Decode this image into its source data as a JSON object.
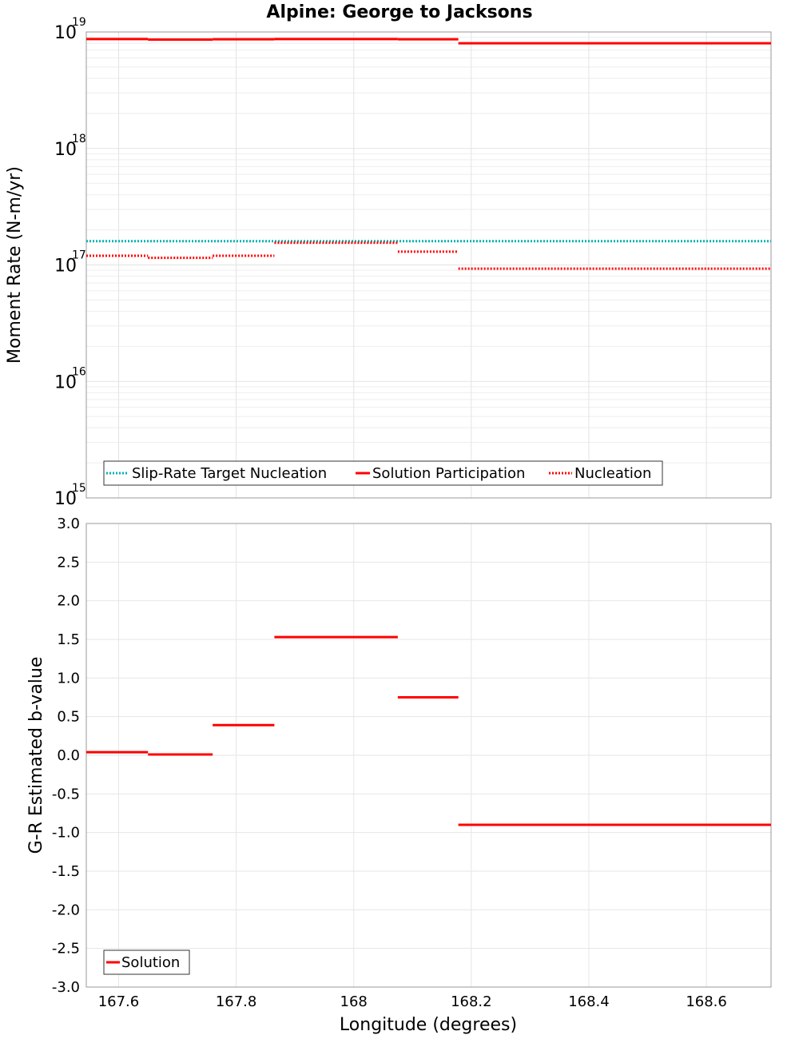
{
  "chart_data": [
    {
      "type": "line",
      "title": "Alpine: George to Jacksons",
      "xlabel": "",
      "ylabel": "Moment Rate (N-m/yr)",
      "yscale": "log",
      "xlim": [
        167.545,
        168.71
      ],
      "ylim": [
        1000000000000000.0,
        1e+19
      ],
      "y_ticks": [
        {
          "base": "10",
          "exp": "15",
          "value": 1000000000000000.0
        },
        {
          "base": "10",
          "exp": "16",
          "value": 1e+16
        },
        {
          "base": "10",
          "exp": "17",
          "value": 1e+17
        },
        {
          "base": "10",
          "exp": "18",
          "value": 1e+18
        },
        {
          "base": "10",
          "exp": "19",
          "value": 1e+19
        }
      ],
      "grid": true,
      "legend_position": "bottom-left",
      "series": [
        {
          "name": "Slip-Rate Target Nucleation",
          "color": "#00b3b3",
          "style": "dotted",
          "segments": [
            {
              "x0": 167.545,
              "x1": 168.71,
              "y": 1.6e+17
            }
          ]
        },
        {
          "name": "Solution Participation",
          "color": "#ff0000",
          "style": "solid",
          "segments": [
            {
              "x0": 167.545,
              "x1": 167.65,
              "y": 8.7e+18
            },
            {
              "x0": 167.65,
              "x1": 167.76,
              "y": 8.6e+18
            },
            {
              "x0": 167.76,
              "x1": 167.865,
              "y": 8.65e+18
            },
            {
              "x0": 167.865,
              "x1": 168.075,
              "y": 8.7e+18
            },
            {
              "x0": 168.075,
              "x1": 168.178,
              "y": 8.65e+18
            },
            {
              "x0": 168.178,
              "x1": 168.71,
              "y": 8e+18
            }
          ]
        },
        {
          "name": "Nucleation",
          "color": "#ff0000",
          "style": "dotted",
          "segments": [
            {
              "x0": 167.545,
              "x1": 167.65,
              "y": 1.2e+17
            },
            {
              "x0": 167.65,
              "x1": 167.76,
              "y": 1.15e+17
            },
            {
              "x0": 167.76,
              "x1": 167.865,
              "y": 1.2e+17
            },
            {
              "x0": 167.865,
              "x1": 168.075,
              "y": 1.55e+17
            },
            {
              "x0": 168.075,
              "x1": 168.178,
              "y": 1.3e+17
            },
            {
              "x0": 168.178,
              "x1": 168.71,
              "y": 9.3e+16
            }
          ]
        }
      ]
    },
    {
      "type": "line",
      "title": "",
      "xlabel": "Longitude (degrees)",
      "ylabel": "G-R Estimated b-value",
      "xlim": [
        167.545,
        168.71
      ],
      "ylim": [
        -3.0,
        3.0
      ],
      "x_ticks": [
        "167.6",
        "167.8",
        "168",
        "168.2",
        "168.4",
        "168.6"
      ],
      "x_tick_values": [
        167.6,
        167.8,
        168.0,
        168.2,
        168.4,
        168.6
      ],
      "y_ticks": [
        "-3.0",
        "-2.5",
        "-2.0",
        "-1.5",
        "-1.0",
        "-0.5",
        "0.0",
        "0.5",
        "1.0",
        "1.5",
        "2.0",
        "2.5",
        "3.0"
      ],
      "y_tick_values": [
        -3.0,
        -2.5,
        -2.0,
        -1.5,
        -1.0,
        -0.5,
        0.0,
        0.5,
        1.0,
        1.5,
        2.0,
        2.5,
        3.0
      ],
      "grid": true,
      "legend_position": "bottom-left",
      "series": [
        {
          "name": "Solution",
          "color": "#ff0000",
          "style": "solid",
          "segments": [
            {
              "x0": 167.545,
              "x1": 167.65,
              "y": 0.04
            },
            {
              "x0": 167.65,
              "x1": 167.76,
              "y": 0.01
            },
            {
              "x0": 167.76,
              "x1": 167.865,
              "y": 0.39
            },
            {
              "x0": 167.865,
              "x1": 168.075,
              "y": 1.53
            },
            {
              "x0": 168.075,
              "x1": 168.178,
              "y": 0.75
            },
            {
              "x0": 168.178,
              "x1": 168.71,
              "y": -0.9
            }
          ]
        }
      ]
    }
  ]
}
